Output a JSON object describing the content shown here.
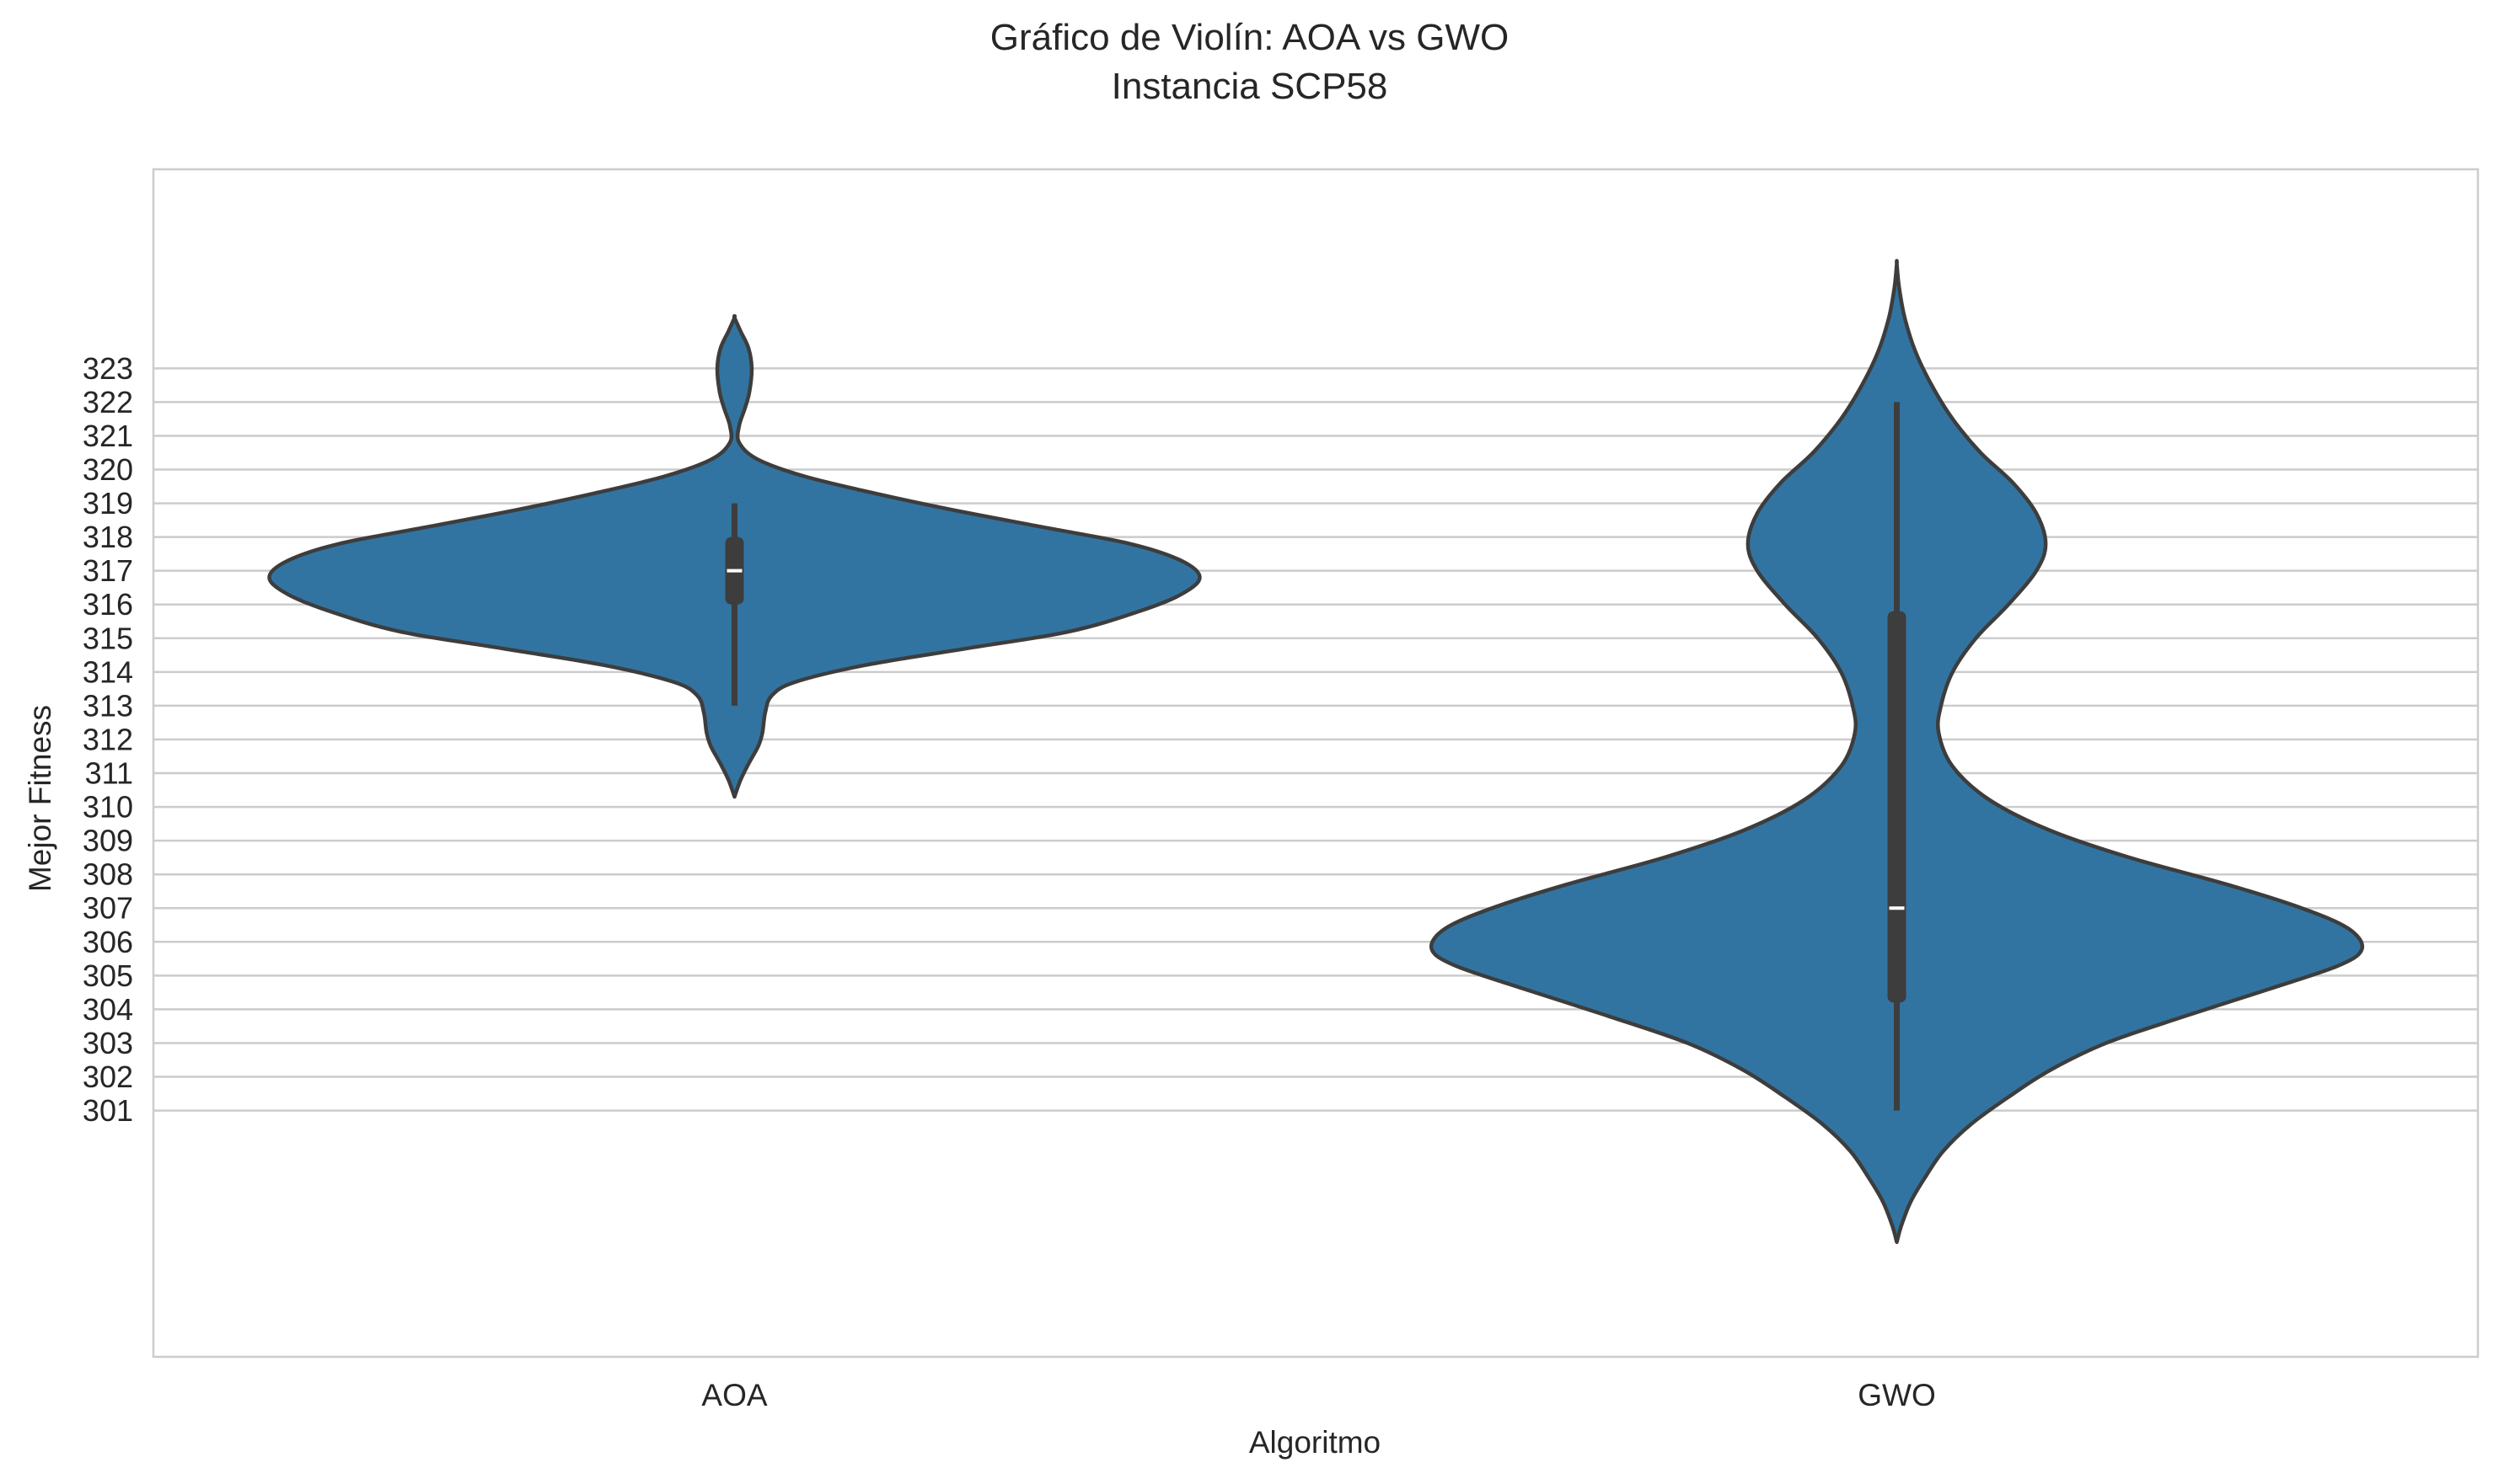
{
  "chart_data": {
    "type": "violin",
    "title": "Gráfico de Violín: AOA vs GWO",
    "subtitle": "Instancia SCP58",
    "xlabel": "Algoritmo",
    "ylabel": "Mejor Fitness",
    "categories": [
      "AOA",
      "GWO"
    ],
    "yticks": [
      301,
      302,
      303,
      304,
      305,
      306,
      307,
      308,
      309,
      310,
      311,
      312,
      313,
      314,
      315,
      316,
      317,
      318,
      319,
      320,
      321,
      322,
      323
    ],
    "ylim": [
      293.7,
      328.9
    ],
    "grid": true,
    "colors": {
      "violin_fill": "#3274a1",
      "outline": "#3d3d3d",
      "grid": "#cccccc",
      "frame": "#cccccc",
      "median": "#ffffff"
    },
    "series": [
      {
        "category": "AOA",
        "box": {
          "whisker_low": 313,
          "q1": 316,
          "median": 317,
          "q3": 318,
          "whisker_high": 319
        },
        "density": [
          [
            310.3,
            0.0
          ],
          [
            310.8,
            0.013
          ],
          [
            311.3,
            0.031
          ],
          [
            311.8,
            0.051
          ],
          [
            312.2,
            0.06
          ],
          [
            312.8,
            0.066
          ],
          [
            313.3,
            0.08
          ],
          [
            313.7,
            0.13
          ],
          [
            314.2,
            0.28
          ],
          [
            314.7,
            0.5
          ],
          [
            315.2,
            0.72
          ],
          [
            315.8,
            0.87
          ],
          [
            316.3,
            0.96
          ],
          [
            316.8,
            1.0
          ],
          [
            317.3,
            0.96
          ],
          [
            317.8,
            0.85
          ],
          [
            318.3,
            0.66
          ],
          [
            318.8,
            0.47
          ],
          [
            319.3,
            0.3
          ],
          [
            319.8,
            0.15
          ],
          [
            320.3,
            0.05
          ],
          [
            320.8,
            0.01
          ],
          [
            321.3,
            0.01
          ],
          [
            321.8,
            0.022
          ],
          [
            322.3,
            0.032
          ],
          [
            323.0,
            0.037
          ],
          [
            323.6,
            0.03
          ],
          [
            324.1,
            0.013
          ],
          [
            324.5,
            0.0
          ]
        ]
      },
      {
        "category": "GWO",
        "box": {
          "whisker_low": 301,
          "q1": 304.2,
          "median": 307,
          "q3": 315.8,
          "whisker_high": 322
        },
        "density": [
          [
            297.1,
            0.0
          ],
          [
            297.6,
            0.01
          ],
          [
            298.3,
            0.03
          ],
          [
            299.0,
            0.06
          ],
          [
            299.8,
            0.1
          ],
          [
            300.6,
            0.16
          ],
          [
            301.4,
            0.24
          ],
          [
            302.2,
            0.33
          ],
          [
            303.0,
            0.45
          ],
          [
            303.8,
            0.62
          ],
          [
            304.6,
            0.8
          ],
          [
            305.3,
            0.95
          ],
          [
            305.8,
            1.0
          ],
          [
            306.4,
            0.97
          ],
          [
            307.0,
            0.87
          ],
          [
            307.7,
            0.71
          ],
          [
            308.5,
            0.5
          ],
          [
            309.3,
            0.33
          ],
          [
            310.2,
            0.2
          ],
          [
            311.2,
            0.12
          ],
          [
            312.2,
            0.09
          ],
          [
            313.0,
            0.095
          ],
          [
            314.0,
            0.12
          ],
          [
            315.0,
            0.17
          ],
          [
            316.0,
            0.24
          ],
          [
            317.0,
            0.3
          ],
          [
            317.8,
            0.32
          ],
          [
            318.7,
            0.3
          ],
          [
            319.6,
            0.25
          ],
          [
            320.5,
            0.18
          ],
          [
            321.5,
            0.12
          ],
          [
            322.5,
            0.075
          ],
          [
            323.5,
            0.04
          ],
          [
            324.5,
            0.017
          ],
          [
            325.4,
            0.005
          ],
          [
            326.1,
            0.0
          ]
        ]
      }
    ]
  }
}
